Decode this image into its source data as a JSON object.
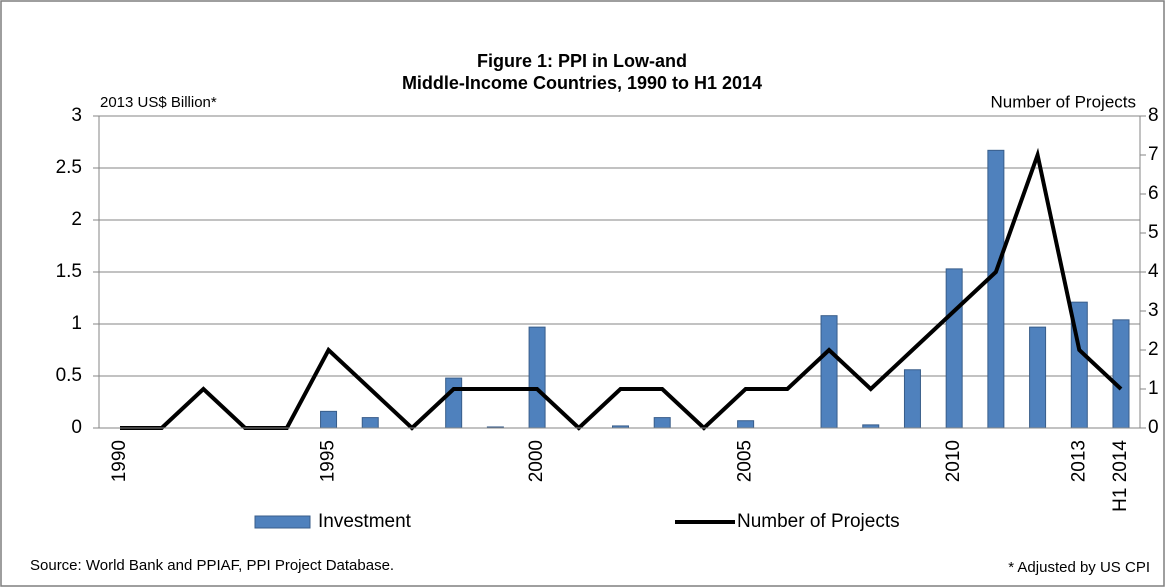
{
  "chart_data": {
    "type": "bar-line",
    "title": [
      "Figure 1: PPI in Low-and",
      "Middle-Income Countries, 1990 to H1 2014"
    ],
    "y_label": "2013 US$ Billion*",
    "y2_label": "Number of Projects",
    "categories": [
      "1990",
      null,
      null,
      null,
      null,
      "1995",
      null,
      null,
      null,
      null,
      "2000",
      null,
      null,
      null,
      null,
      "2005",
      null,
      null,
      null,
      null,
      "2010",
      null,
      null,
      "2013",
      "H1 2014"
    ],
    "series": [
      {
        "name": "Investment",
        "type": "bar",
        "color": "#4f81bd",
        "values": [
          0,
          0,
          0,
          0,
          0,
          0.16,
          0.1,
          0,
          0.48,
          0.01,
          0.97,
          0,
          0.02,
          0.1,
          0,
          0.07,
          0,
          1.08,
          0.03,
          0.56,
          1.53,
          2.67,
          0.97,
          1.21,
          1.04
        ]
      },
      {
        "name": "Number of Projects",
        "type": "line",
        "axis": "y2",
        "color": "#000000",
        "values": [
          0,
          0,
          1,
          0,
          0,
          2,
          1,
          0,
          1,
          1,
          1,
          0,
          1,
          1,
          0,
          1,
          1,
          2,
          1,
          2,
          3,
          4,
          7,
          2,
          1
        ]
      }
    ],
    "ylim": [
      0,
      3
    ],
    "yticks": [
      0,
      0.5,
      1,
      1.5,
      2,
      2.5,
      3
    ],
    "y2lim": [
      0,
      8
    ],
    "y2ticks": [
      0,
      1,
      2,
      3,
      4,
      5,
      6,
      7,
      8
    ],
    "grid": true,
    "legend": "bottom",
    "source": "Source:  World Bank and PPIAF, PPI Project Database.",
    "note": "* Adjusted by US CPI"
  }
}
